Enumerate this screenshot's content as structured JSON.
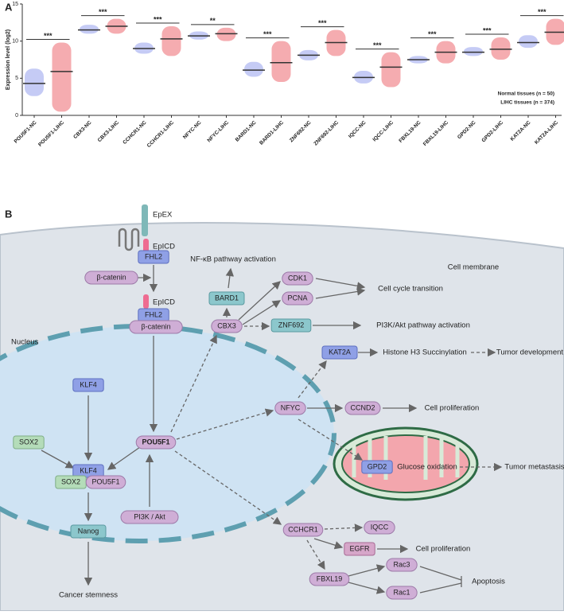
{
  "chart_data": {
    "type": "strip",
    "panel_label": "A",
    "y_label": "Expression level (log2)",
    "categories": [
      "POU5F1-NC",
      "POU5F1-LIHC",
      "CBX3-NC",
      "CBX3-LIHC",
      "CCHCR1-NC",
      "CCHCR1-LIHC",
      "NFYC-NC",
      "NFYC-LIHC",
      "BARD1-NC",
      "BARD1-LIHC",
      "ZNF692-NC",
      "ZNF692-LIHC",
      "IQCC-NC",
      "IQCC-LIHC",
      "FBXL19-NC",
      "FBXL19-LIHC",
      "GPD2-NC",
      "GPD2-LIHC",
      "KAT2A-NC",
      "KAT2A-LIHC"
    ],
    "series": [
      {
        "name": "Normal tissues (n = 50)",
        "color": "#7f8be8",
        "values": [
          4.3,
          null,
          11.5,
          null,
          9.0,
          null,
          10.7,
          null,
          6.1,
          null,
          8.1,
          null,
          5.1,
          null,
          7.5,
          null,
          8.5,
          null,
          9.8,
          null
        ]
      },
      {
        "name": "LIHC tissues (n = 374)",
        "color": "#e8474f",
        "values": [
          null,
          5.9,
          null,
          12.0,
          null,
          10.3,
          null,
          11.0,
          null,
          7.1,
          null,
          9.8,
          null,
          6.5,
          null,
          8.5,
          null,
          8.9,
          null,
          11.2
        ]
      }
    ],
    "low": [
      2.6,
      0.5,
      11.0,
      11.0,
      8.3,
      8.0,
      10.2,
      10.0,
      5.2,
      4.5,
      7.4,
      8.0,
      4.3,
      3.8,
      7.0,
      7.0,
      8.0,
      7.5,
      9.1,
      9.5
    ],
    "high": [
      6.3,
      9.8,
      12.2,
      13.0,
      9.8,
      12.0,
      11.3,
      11.8,
      7.2,
      10.0,
      8.8,
      11.5,
      6.0,
      8.5,
      8.0,
      10.0,
      9.2,
      10.5,
      10.8,
      13.0
    ],
    "significance": [
      "***",
      "***",
      "***",
      "**",
      "***",
      "***",
      "***",
      "***",
      "***",
      "***"
    ],
    "ylim": [
      0,
      15
    ],
    "yticks": [
      0,
      5,
      10,
      15
    ]
  },
  "diagram": {
    "panel_label": "B",
    "nodes": [
      "EpEX",
      "EpICD",
      "FHL2",
      "β-catenin",
      "EpICD",
      "FHL2",
      "β-catenin",
      "NF-κB pathway activation",
      "BARD1",
      "CDK1",
      "PCNA",
      "Cell cycle transition",
      "Cell membrane",
      "CBX3",
      "ZNF692",
      "PI3K/Akt pathway activation",
      "Nucleus",
      "KAT2A",
      "Histone H3 Succinylation",
      "Tumor development",
      "KLF4",
      "NFYC",
      "CCND2",
      "Cell proliferation",
      "SOX2",
      "POU5F1",
      "KLF4",
      "SOX2",
      "POU5F1",
      "GPD2",
      "Glucose oxidation",
      "Tumor metastasis",
      "PI3K / Akt",
      "Nanog",
      "CCHCR1",
      "IQCC",
      "EGFR",
      "Cell proliferation",
      "Rac3",
      "FBXL19",
      "Apoptosis",
      "Rac1",
      "Cancer stemness"
    ]
  }
}
